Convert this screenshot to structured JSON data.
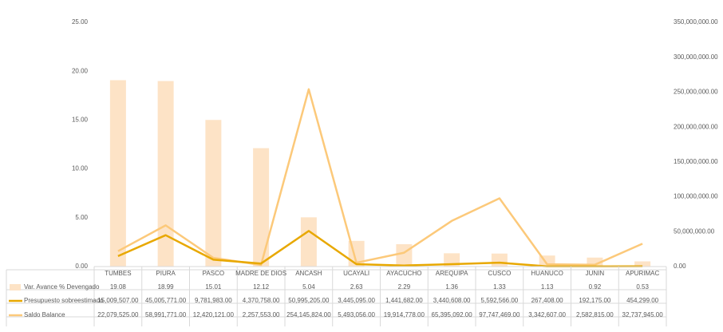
{
  "chart_data": {
    "type": "bar",
    "categories": [
      "TUMBES",
      "PIURA",
      "PASCO",
      "MADRE DE DIOS",
      "ANCASH",
      "UCAYALI",
      "AYACUCHO",
      "AREQUIPA",
      "CUSCO",
      "HUANUCO",
      "JUNIN",
      "APURIMAC"
    ],
    "series": [
      {
        "name": "Var. Avance % Devengado",
        "type": "bar",
        "axis": "left",
        "color": "#fde3c6",
        "values": [
          19.08,
          18.99,
          15.01,
          12.12,
          5.04,
          2.63,
          2.29,
          1.36,
          1.33,
          1.13,
          0.92,
          0.53
        ],
        "labels": [
          "19.08",
          "18.99",
          "15.01",
          "12.12",
          "5.04",
          "2.63",
          "2.29",
          "1.36",
          "1.33",
          "1.13",
          "0.92",
          "0.53"
        ]
      },
      {
        "name": "Presupuesto sobreestimado",
        "type": "line",
        "axis": "right",
        "color": "#e8a800",
        "values": [
          15009507,
          45005771,
          9781983,
          4370758,
          50995205,
          3445095,
          1441682,
          3440608,
          5592566,
          267408,
          192175,
          454299
        ],
        "labels": [
          "15,009,507.00",
          "45,005,771.00",
          "9,781,983.00",
          "4,370,758.00",
          "50,995,205.00",
          "3,445,095.00",
          "1,441,682.00",
          "3,440,608.00",
          "5,592,566.00",
          "267,408.00",
          "192,175.00",
          "454,299.00"
        ]
      },
      {
        "name": "Saldo Balance",
        "type": "line",
        "axis": "right",
        "color": "#fcc97a",
        "values": [
          22079525,
          58991771,
          12420121,
          2257553,
          254145824,
          5493056,
          19914778,
          65395092,
          97747469,
          3342607,
          2582815,
          32737945
        ],
        "labels": [
          "22,079,525.00",
          "58,991,771.00",
          "12,420,121.00",
          "2,257,553.00",
          "254,145,824.00",
          "5,493,056.00",
          "19,914,778.00",
          "65,395,092.00",
          "97,747,469.00",
          "3,342,607.00",
          "2,582,815.00",
          "32,737,945.00"
        ]
      }
    ],
    "y_left": {
      "ylim": [
        0,
        25
      ],
      "ticks": [
        "0.00",
        "5.00",
        "10.00",
        "15.00",
        "20.00",
        "25.00"
      ]
    },
    "y_right": {
      "ylim": [
        0,
        350000000
      ],
      "ticks": [
        "0.00",
        "50,000,000.00",
        "100,000,000.00",
        "150,000,000.00",
        "200,000,000.00",
        "250,000,000.00",
        "300,000,000.00",
        "350,000,000.00"
      ]
    },
    "grid": false,
    "legend": "data-table"
  }
}
